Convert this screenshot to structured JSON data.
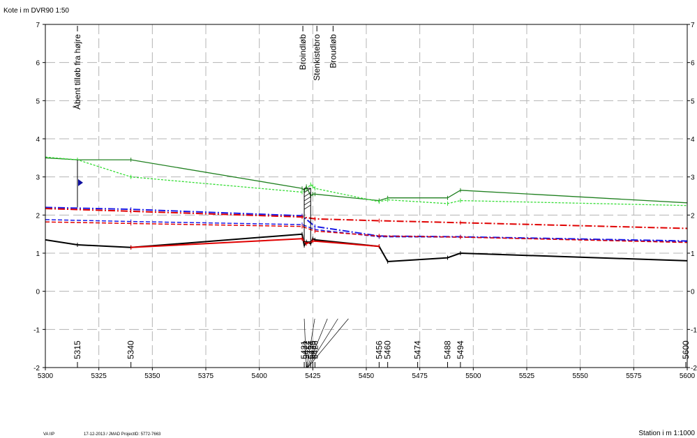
{
  "header": {
    "scale_label": "Kote i m DVR90 1:50"
  },
  "footer": {
    "left_code": "VA IIP",
    "project_info": "17-12-2013 / JMAD  ProjectID: 5772-7663",
    "xaxis_label": "Station i m 1:1000"
  },
  "chart_data": {
    "type": "line",
    "xlim": [
      5300,
      5600
    ],
    "ylim": [
      -2,
      7
    ],
    "grid": true,
    "x_ticks": [
      5300,
      5325,
      5350,
      5375,
      5400,
      5425,
      5450,
      5475,
      5500,
      5525,
      5550,
      5575,
      5600
    ],
    "y_ticks": [
      -2,
      -1,
      0,
      1,
      2,
      3,
      4,
      5,
      6,
      7
    ],
    "station_labels": [
      {
        "label": "5315",
        "x": 5315
      },
      {
        "label": "5340",
        "x": 5340
      },
      {
        "label": "5421",
        "x": 5421
      },
      {
        "label": "5422",
        "x": 5422
      },
      {
        "label": "5424",
        "x": 5424
      },
      {
        "label": "5425",
        "x": 5425
      },
      {
        "label": "5426",
        "x": 5426
      },
      {
        "label": "5456",
        "x": 5456
      },
      {
        "label": "5460",
        "x": 5460
      },
      {
        "label": "5474",
        "x": 5474
      },
      {
        "label": "5488",
        "x": 5488
      },
      {
        "label": "5494",
        "x": 5494
      },
      {
        "label": "5600",
        "x": 5600
      }
    ],
    "annotations": [
      {
        "text": "Åbent tilløb fra højre",
        "x": 5315
      },
      {
        "text": "Broindløb",
        "x": 5421
      },
      {
        "text": "Stenkistebro",
        "x": 5423
      },
      {
        "text": "Broudløb",
        "x": 5426
      }
    ],
    "series": [
      {
        "style": "bed",
        "color": "#000000",
        "width": 2,
        "dash": "",
        "x": [
          5300,
          5315,
          5340,
          5420,
          5421,
          5422,
          5424,
          5425,
          5426,
          5456,
          5460,
          5488,
          5494,
          5600
        ],
        "y": [
          1.35,
          1.22,
          1.15,
          1.5,
          1.2,
          1.3,
          1.25,
          1.38,
          1.35,
          1.18,
          0.78,
          0.88,
          1.0,
          0.8
        ]
      },
      {
        "style": "red-bed",
        "color": "#e00000",
        "width": 2,
        "dash": "",
        "x": [
          5340,
          5420,
          5422,
          5425,
          5456
        ],
        "y": [
          1.15,
          1.38,
          1.25,
          1.32,
          1.18
        ]
      },
      {
        "style": "bank",
        "color": "#208020",
        "width": 1.3,
        "dash": "",
        "x": [
          5300,
          5315,
          5340,
          5420,
          5421,
          5422,
          5424,
          5425,
          5426,
          5456,
          5460,
          5488,
          5494,
          5600
        ],
        "y": [
          3.5,
          3.45,
          3.45,
          2.7,
          2.65,
          2.75,
          2.5,
          2.55,
          2.55,
          2.38,
          2.45,
          2.45,
          2.65,
          2.32
        ]
      },
      {
        "style": "bank2",
        "color": "#33dd33",
        "width": 1.3,
        "dash": "3,2",
        "x": [
          5300,
          5315,
          5340,
          5420,
          5421,
          5422,
          5424,
          5425,
          5426,
          5456,
          5460,
          5488,
          5494,
          5600
        ],
        "y": [
          3.52,
          3.45,
          3.0,
          2.6,
          2.62,
          2.68,
          2.8,
          2.75,
          2.7,
          2.35,
          2.4,
          2.3,
          2.38,
          2.25
        ]
      },
      {
        "style": "wl-blue-high",
        "color": "#1a1ae6",
        "width": 2,
        "dash": "10,3,2,3",
        "x": [
          5300,
          5340,
          5420,
          5426,
          5456,
          5494,
          5600
        ],
        "y": [
          2.2,
          2.15,
          1.98,
          1.7,
          1.45,
          1.43,
          1.32
        ]
      },
      {
        "style": "wl-red-high",
        "color": "#e00000",
        "width": 2,
        "dash": "10,3,2,3",
        "x": [
          5300,
          5340,
          5420,
          5426,
          5456,
          5494,
          5600
        ],
        "y": [
          2.17,
          2.1,
          1.95,
          1.9,
          1.85,
          1.8,
          1.65
        ]
      },
      {
        "style": "wl-blue-low",
        "color": "#1a1ae6",
        "width": 1.5,
        "dash": "6,3",
        "x": [
          5300,
          5340,
          5420,
          5426,
          5456,
          5494,
          5600
        ],
        "y": [
          1.88,
          1.83,
          1.75,
          1.62,
          1.43,
          1.42,
          1.3
        ]
      },
      {
        "style": "wl-red-low",
        "color": "#e00000",
        "width": 1.5,
        "dash": "6,3",
        "x": [
          5300,
          5340,
          5420,
          5426,
          5456,
          5494,
          5600
        ],
        "y": [
          1.82,
          1.78,
          1.7,
          1.58,
          1.45,
          1.42,
          1.28
        ]
      }
    ]
  }
}
